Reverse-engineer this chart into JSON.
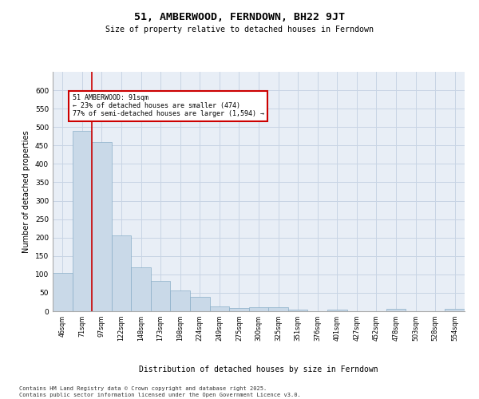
{
  "title": "51, AMBERWOOD, FERNDOWN, BH22 9JT",
  "subtitle": "Size of property relative to detached houses in Ferndown",
  "xlabel": "Distribution of detached houses by size in Ferndown",
  "ylabel": "Number of detached properties",
  "bar_color": "#c9d9e8",
  "bar_edge_color": "#8aafc8",
  "grid_color": "#c8d4e4",
  "background_color": "#e8eef6",
  "vline_color": "#cc0000",
  "vline_x": 1.5,
  "annotation_text": "51 AMBERWOOD: 91sqm\n← 23% of detached houses are smaller (474)\n77% of semi-detached houses are larger (1,594) →",
  "annotation_box_color": "#cc0000",
  "footer_text": "Contains HM Land Registry data © Crown copyright and database right 2025.\nContains public sector information licensed under the Open Government Licence v3.0.",
  "categories": [
    "46sqm",
    "71sqm",
    "97sqm",
    "122sqm",
    "148sqm",
    "173sqm",
    "198sqm",
    "224sqm",
    "249sqm",
    "275sqm",
    "300sqm",
    "325sqm",
    "351sqm",
    "376sqm",
    "401sqm",
    "427sqm",
    "452sqm",
    "478sqm",
    "503sqm",
    "528sqm",
    "554sqm"
  ],
  "values": [
    105,
    490,
    460,
    205,
    120,
    82,
    57,
    38,
    14,
    8,
    10,
    10,
    4,
    0,
    5,
    0,
    0,
    6,
    0,
    0,
    6
  ],
  "ylim": [
    0,
    650
  ],
  "yticks": [
    0,
    50,
    100,
    150,
    200,
    250,
    300,
    350,
    400,
    450,
    500,
    550,
    600
  ]
}
